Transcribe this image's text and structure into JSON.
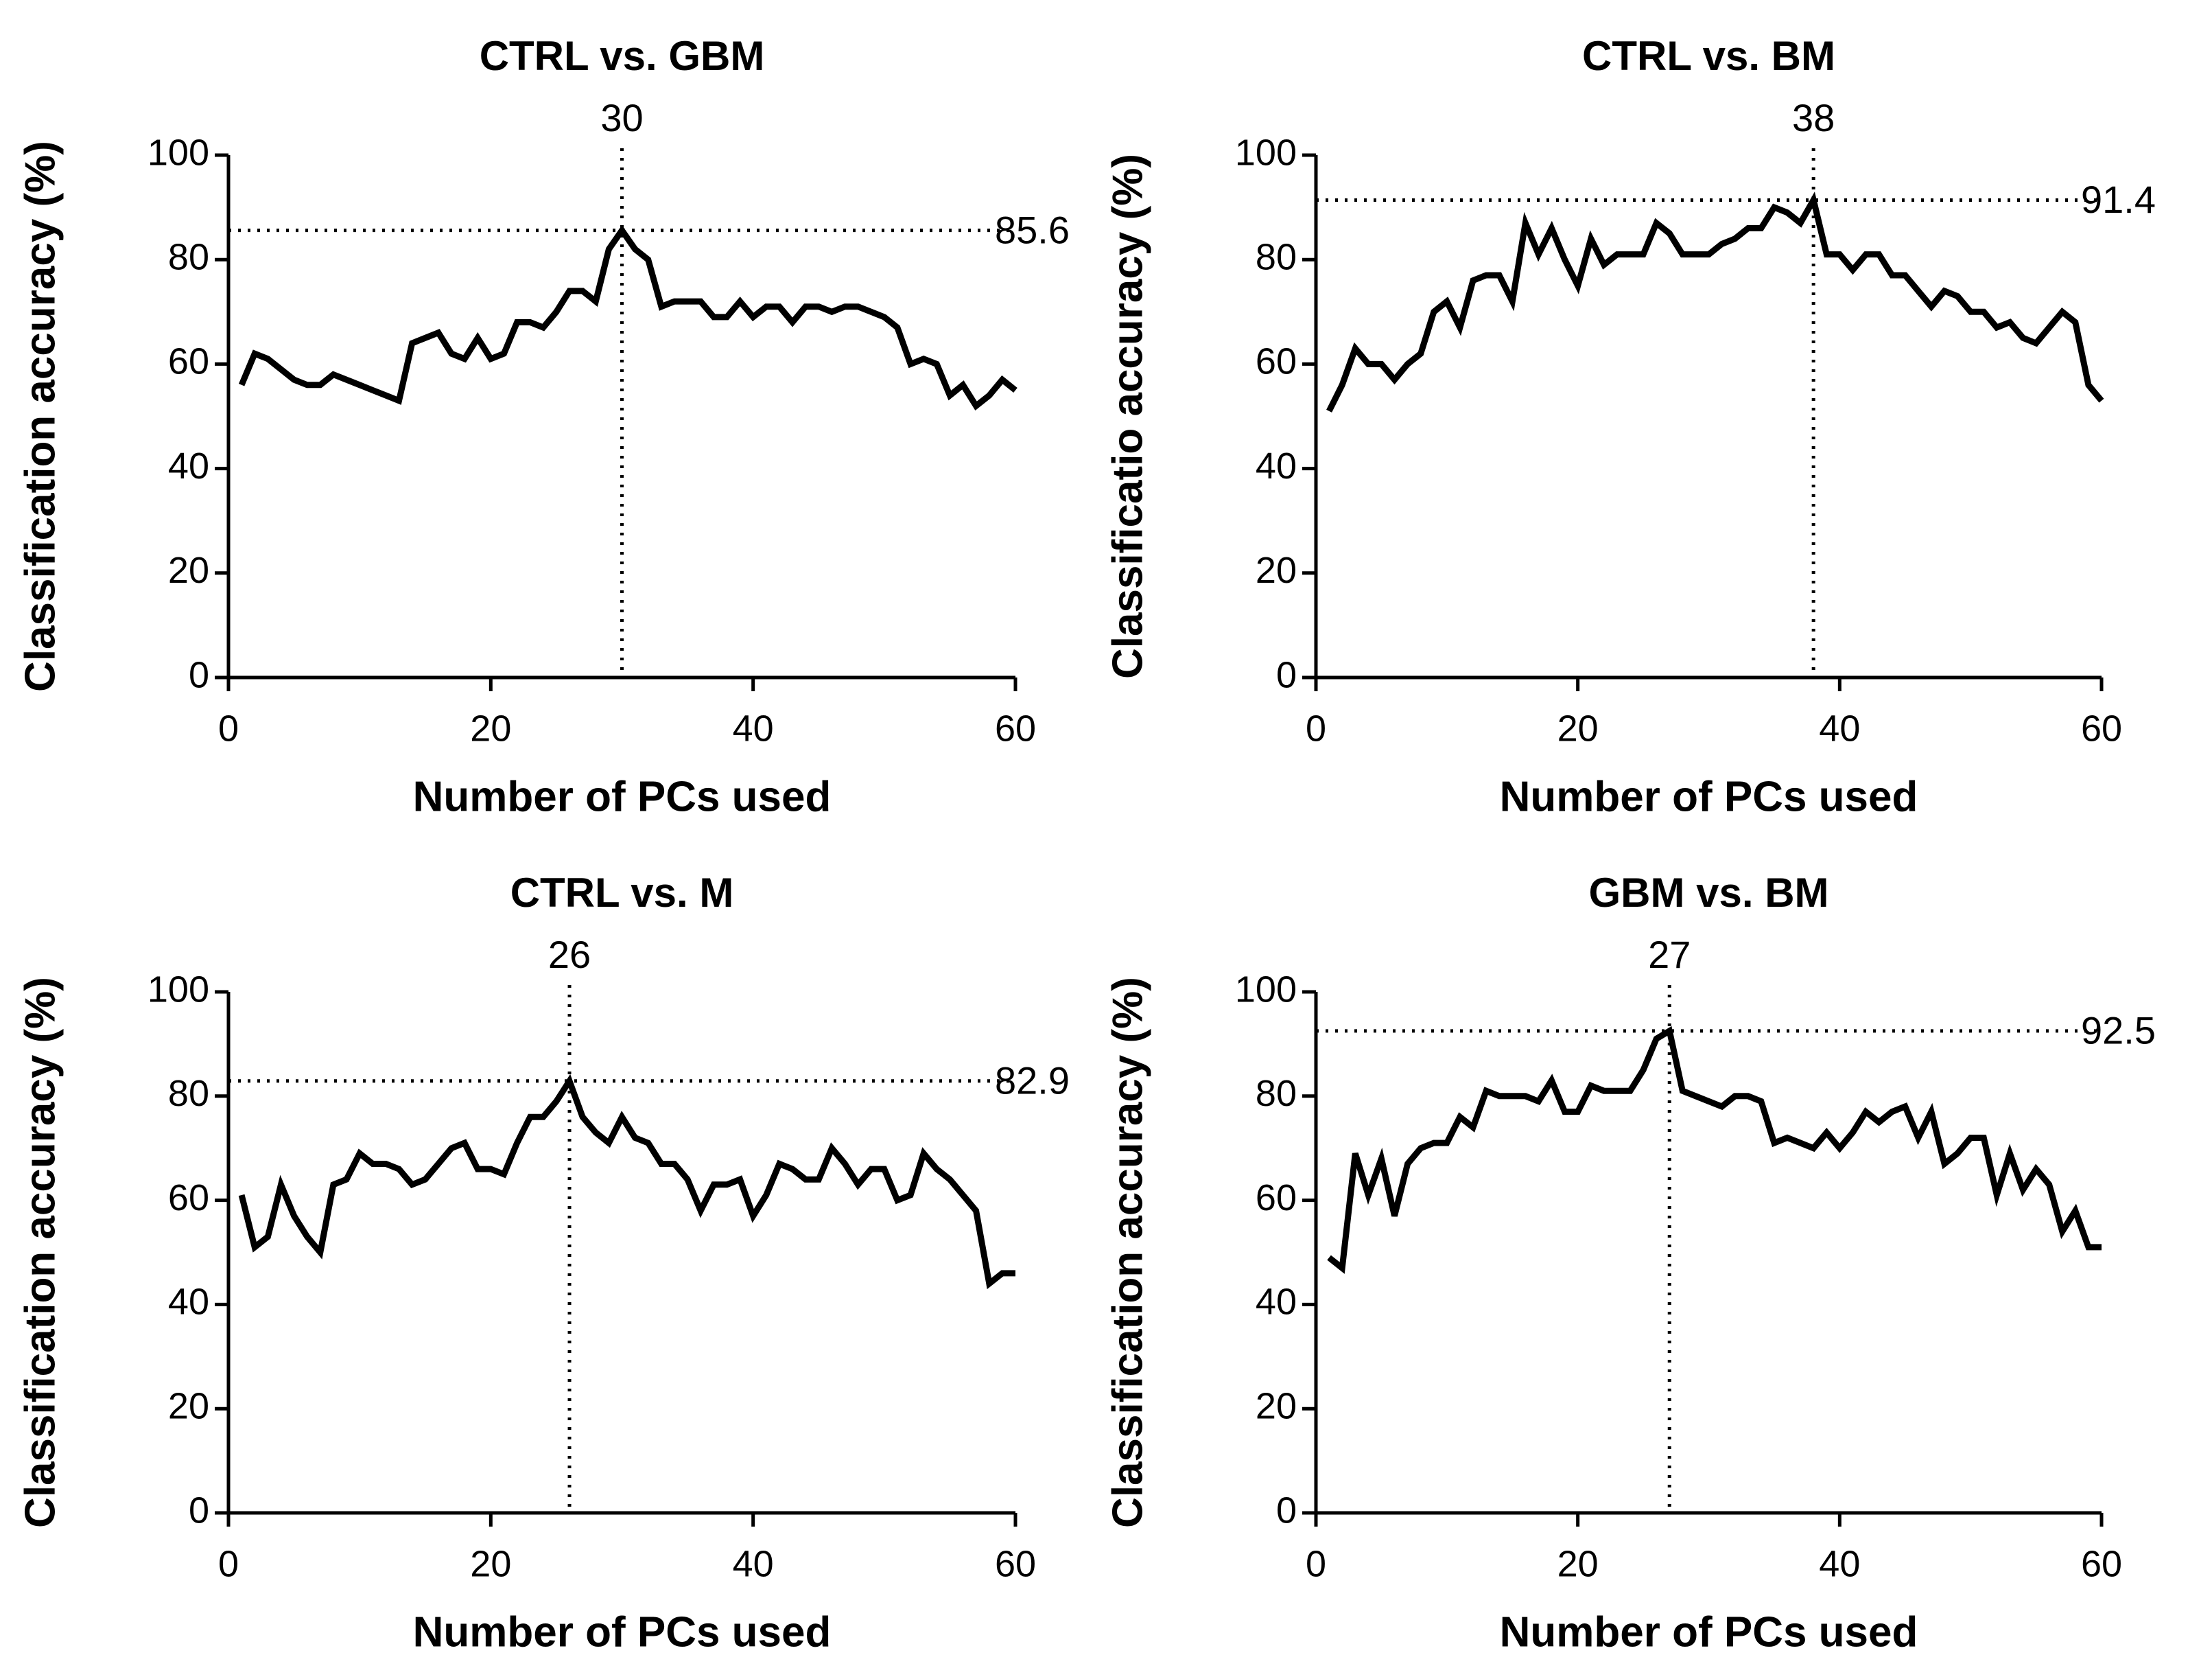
{
  "chart_data": [
    {
      "type": "line",
      "title": "CTRL vs. GBM",
      "xlabel": "Number of PCs used",
      "ylabel": "Classification accuracy  (%)",
      "x": [
        1,
        2,
        3,
        4,
        5,
        6,
        7,
        8,
        9,
        10,
        11,
        12,
        13,
        14,
        15,
        16,
        17,
        18,
        19,
        20,
        21,
        22,
        23,
        24,
        25,
        26,
        27,
        28,
        29,
        30,
        31,
        32,
        33,
        34,
        35,
        36,
        37,
        38,
        39,
        40,
        41,
        42,
        43,
        44,
        45,
        46,
        47,
        48,
        49,
        50,
        51,
        52,
        53,
        54,
        55,
        56,
        57,
        58,
        59,
        60
      ],
      "series": [
        {
          "color": "#000000",
          "values": [
            56,
            62,
            61,
            59,
            57,
            56,
            56,
            58,
            57,
            56,
            55,
            54,
            53,
            64,
            65,
            66,
            62,
            61,
            65,
            61,
            62,
            68,
            68,
            67,
            70,
            74,
            74,
            72,
            82,
            85.6,
            82,
            80,
            71,
            72,
            72,
            72,
            69,
            69,
            72,
            69,
            71,
            71,
            68,
            71,
            71,
            70,
            71,
            71,
            70,
            69,
            67,
            60,
            61,
            60,
            54,
            56,
            52,
            54,
            57,
            55
          ]
        }
      ],
      "annotation": {
        "x": 30,
        "y": 85.6
      },
      "xlim": [
        0,
        60
      ],
      "xticks": [
        0,
        20,
        40,
        60
      ],
      "ylim": [
        0,
        100
      ],
      "yticks": [
        0,
        20,
        40,
        60,
        80,
        100
      ]
    },
    {
      "type": "line",
      "title": "CTRL vs. BM",
      "xlabel": "Number of PCs used",
      "ylabel": "Classificatio accuracy  (%)",
      "x": [
        1,
        2,
        3,
        4,
        5,
        6,
        7,
        8,
        9,
        10,
        11,
        12,
        13,
        14,
        15,
        16,
        17,
        18,
        19,
        20,
        21,
        22,
        23,
        24,
        25,
        26,
        27,
        28,
        29,
        30,
        31,
        32,
        33,
        34,
        35,
        36,
        37,
        38,
        39,
        40,
        41,
        42,
        43,
        44,
        45,
        46,
        47,
        48,
        49,
        50,
        51,
        52,
        53,
        54,
        55,
        56,
        57,
        58,
        59,
        60
      ],
      "series": [
        {
          "color": "#000000",
          "values": [
            51,
            56,
            63,
            60,
            60,
            57,
            60,
            62,
            70,
            72,
            67,
            76,
            77,
            77,
            72,
            87,
            81,
            86,
            80,
            75,
            84,
            79,
            81,
            81,
            81,
            87,
            85,
            81,
            81,
            81,
            83,
            84,
            86,
            86,
            90,
            89,
            87,
            91.4,
            81,
            81,
            78,
            81,
            81,
            77,
            77,
            74,
            71,
            74,
            73,
            70,
            70,
            67,
            68,
            65,
            64,
            67,
            70,
            68,
            56,
            53
          ]
        }
      ],
      "annotation": {
        "x": 38,
        "y": 91.4
      },
      "xlim": [
        0,
        60
      ],
      "xticks": [
        0,
        20,
        40,
        60
      ],
      "ylim": [
        0,
        100
      ],
      "yticks": [
        0,
        20,
        40,
        60,
        80,
        100
      ]
    },
    {
      "type": "line",
      "title": "CTRL vs.  M",
      "xlabel": "Number of PCs used",
      "ylabel": "Classification accuracy  (%)",
      "x": [
        1,
        2,
        3,
        4,
        5,
        6,
        7,
        8,
        9,
        10,
        11,
        12,
        13,
        14,
        15,
        16,
        17,
        18,
        19,
        20,
        21,
        22,
        23,
        24,
        25,
        26,
        27,
        28,
        29,
        30,
        31,
        32,
        33,
        34,
        35,
        36,
        37,
        38,
        39,
        40,
        41,
        42,
        43,
        44,
        45,
        46,
        47,
        48,
        49,
        50,
        51,
        52,
        53,
        54,
        55,
        56,
        57,
        58,
        59,
        60
      ],
      "series": [
        {
          "color": "#000000",
          "values": [
            61,
            51,
            53,
            63,
            57,
            53,
            50,
            63,
            64,
            69,
            67,
            67,
            66,
            63,
            64,
            67,
            70,
            71,
            66,
            66,
            65,
            71,
            76,
            76,
            79,
            82.9,
            76,
            73,
            71,
            76,
            72,
            71,
            67,
            67,
            64,
            58,
            63,
            63,
            64,
            57,
            61,
            67,
            66,
            64,
            64,
            70,
            67,
            63,
            66,
            66,
            60,
            61,
            69,
            66,
            64,
            61,
            58,
            44,
            46,
            46
          ]
        }
      ],
      "annotation": {
        "x": 26,
        "y": 82.9
      },
      "xlim": [
        0,
        60
      ],
      "xticks": [
        0,
        20,
        40,
        60
      ],
      "ylim": [
        0,
        100
      ],
      "yticks": [
        0,
        20,
        40,
        60,
        80,
        100
      ]
    },
    {
      "type": "line",
      "title": "GBM vs. BM",
      "xlabel": "Number of PCs used",
      "ylabel": "Classification accuracy  (%)",
      "x": [
        1,
        2,
        3,
        4,
        5,
        6,
        7,
        8,
        9,
        10,
        11,
        12,
        13,
        14,
        15,
        16,
        17,
        18,
        19,
        20,
        21,
        22,
        23,
        24,
        25,
        26,
        27,
        28,
        29,
        30,
        31,
        32,
        33,
        34,
        35,
        36,
        37,
        38,
        39,
        40,
        41,
        42,
        43,
        44,
        45,
        46,
        47,
        48,
        49,
        50,
        51,
        52,
        53,
        54,
        55,
        56,
        57,
        58,
        59,
        60
      ],
      "series": [
        {
          "color": "#000000",
          "values": [
            49,
            47,
            69,
            61,
            68,
            57,
            67,
            70,
            71,
            71,
            76,
            74,
            81,
            80,
            80,
            80,
            79,
            83,
            77,
            77,
            82,
            81,
            81,
            81,
            85,
            91,
            92.5,
            81,
            80,
            79,
            78,
            80,
            80,
            79,
            71,
            72,
            71,
            70,
            73,
            70,
            73,
            77,
            75,
            77,
            78,
            72,
            77,
            67,
            69,
            72,
            72,
            61,
            69,
            62,
            66,
            63,
            54,
            58,
            51,
            51
          ]
        }
      ],
      "annotation": {
        "x": 27,
        "y": 92.5
      },
      "xlim": [
        0,
        60
      ],
      "xticks": [
        0,
        20,
        40,
        60
      ],
      "ylim": [
        0,
        100
      ],
      "yticks": [
        0,
        20,
        40,
        60,
        80,
        100
      ]
    }
  ]
}
